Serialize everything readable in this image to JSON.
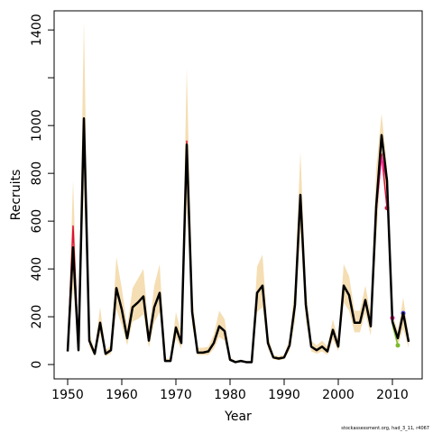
{
  "chart_data": {
    "type": "line",
    "xlabel": "Year",
    "ylabel": "Recruits",
    "footnote": "stockassessment.org, had_3_11, r4067",
    "xlim": [
      1947.5,
      2015.5
    ],
    "ylim": [
      -60,
      1480
    ],
    "xticks": [
      1950,
      1960,
      1970,
      1980,
      1990,
      2000,
      2010
    ],
    "yticks": [
      0,
      200,
      400,
      600,
      800,
      1000,
      {
        "value": 1200,
        "label": null
      },
      1400
    ],
    "x": [
      1950,
      1951,
      1952,
      1953,
      1954,
      1955,
      1956,
      1957,
      1958,
      1959,
      1960,
      1961,
      1962,
      1963,
      1964,
      1965,
      1966,
      1967,
      1968,
      1969,
      1970,
      1971,
      1972,
      1973,
      1974,
      1975,
      1976,
      1977,
      1978,
      1979,
      1980,
      1981,
      1982,
      1983,
      1984,
      1985,
      1986,
      1987,
      1988,
      1989,
      1990,
      1991,
      1992,
      1993,
      1994,
      1995,
      1996,
      1997,
      1998,
      1999,
      2000,
      2001,
      2002,
      2003,
      2004,
      2005,
      2006,
      2007,
      2008,
      2009,
      2010,
      2011,
      2012,
      2013
    ],
    "band": {
      "color": "#f5deb3",
      "upper": [
        70,
        770,
        75,
        1440,
        130,
        60,
        240,
        60,
        80,
        450,
        320,
        160,
        320,
        360,
        400,
        140,
        330,
        420,
        25,
        25,
        220,
        130,
        1240,
        300,
        70,
        70,
        75,
        125,
        225,
        190,
        30,
        15,
        20,
        15,
        15,
        410,
        460,
        125,
        40,
        35,
        40,
        110,
        340,
        890,
        330,
        100,
        80,
        100,
        75,
        190,
        100,
        420,
        370,
        225,
        225,
        330,
        210,
        820,
        1050,
        830,
        210,
        140,
        280,
        125
      ],
      "lower": [
        45,
        330,
        45,
        740,
        75,
        35,
        130,
        35,
        45,
        230,
        165,
        80,
        180,
        190,
        210,
        70,
        175,
        220,
        10,
        10,
        110,
        65,
        680,
        165,
        40,
        40,
        40,
        65,
        115,
        100,
        15,
        7,
        10,
        7,
        7,
        220,
        240,
        65,
        22,
        18,
        22,
        58,
        180,
        560,
        185,
        55,
        45,
        55,
        40,
        105,
        55,
        260,
        225,
        135,
        135,
        215,
        120,
        520,
        860,
        700,
        150,
        80,
        150,
        70
      ]
    },
    "series": [
      {
        "color": "#dc143c",
        "width": 1.5,
        "dot": true,
        "x": [
          1950,
          1951,
          1952,
          1953,
          1954,
          1955,
          1956,
          1957,
          1958,
          1959,
          1960,
          1961,
          1962,
          1963,
          1964,
          1965,
          1966,
          1967,
          1968,
          1969,
          1970,
          1971,
          1972,
          1973,
          1974,
          1975,
          1976,
          1977,
          1978,
          1979,
          1980,
          1981,
          1982,
          1983,
          1984,
          1985,
          1986,
          1987,
          1988,
          1989,
          1990,
          1991,
          1992,
          1993,
          1994,
          1995,
          1996,
          1997,
          1998,
          1999,
          2000,
          2001,
          2002,
          2003,
          2004,
          2005,
          2006,
          2007,
          2008,
          2009
        ],
        "values": [
          55,
          580,
          60,
          1020,
          100,
          45,
          175,
          45,
          60,
          320,
          230,
          110,
          240,
          260,
          285,
          100,
          240,
          300,
          15,
          15,
          155,
          90,
          935,
          220,
          50,
          50,
          55,
          90,
          160,
          140,
          20,
          10,
          15,
          10,
          10,
          300,
          330,
          90,
          30,
          25,
          30,
          80,
          250,
          710,
          250,
          75,
          60,
          75,
          55,
          145,
          75,
          330,
          290,
          175,
          175,
          270,
          160,
          640,
          880,
          655
        ]
      },
      {
        "color": "#ff1493",
        "width": 1.5,
        "dot": true,
        "x": [
          2006,
          2007,
          2008,
          2009,
          2010
        ],
        "values": [
          160,
          650,
          870,
          760,
          195
        ]
      },
      {
        "color": "#7cbb2a",
        "width": 1.5,
        "dot": true,
        "x": [
          2008,
          2009,
          2010,
          2011
        ],
        "values": [
          950,
          750,
          170,
          80
        ]
      },
      {
        "color": "#3b3bdd",
        "width": 1.5,
        "dot": true,
        "x": [
          2010,
          2011,
          2012
        ],
        "values": [
          180,
          110,
          215
        ]
      },
      {
        "color": "#000000",
        "width": 2.5,
        "dot": false,
        "values": [
          55,
          490,
          60,
          1030,
          100,
          45,
          175,
          45,
          60,
          320,
          230,
          110,
          240,
          260,
          285,
          100,
          240,
          300,
          15,
          15,
          155,
          90,
          920,
          220,
          50,
          50,
          55,
          90,
          160,
          140,
          20,
          10,
          15,
          10,
          10,
          300,
          330,
          90,
          30,
          25,
          30,
          80,
          250,
          710,
          250,
          75,
          60,
          75,
          55,
          145,
          75,
          330,
          290,
          175,
          175,
          270,
          160,
          660,
          960,
          770,
          180,
          110,
          215,
          95
        ]
      }
    ]
  }
}
